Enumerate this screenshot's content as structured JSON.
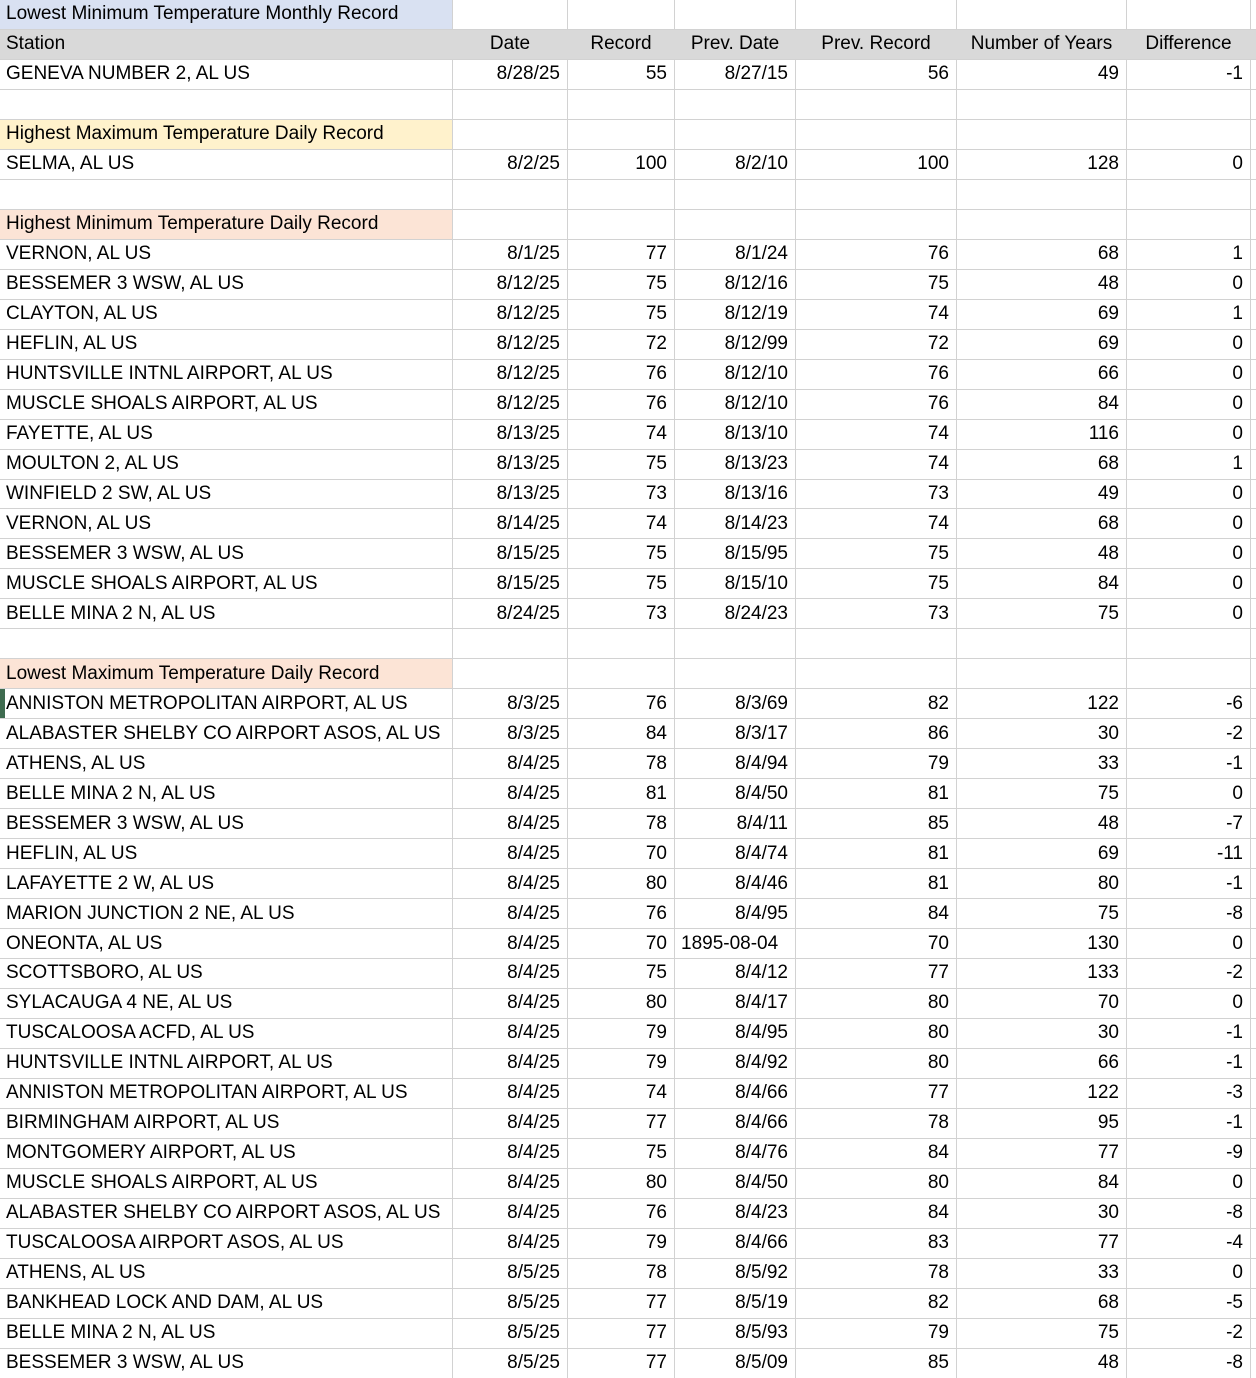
{
  "colors": {
    "gridline": "#d2d2d2",
    "column_header_fill": "#d9d9d9",
    "section_fill_monthly_lowest_min": "#d9e1f2",
    "section_fill_daily_highest_max": "#fff2cc",
    "section_fill_daily_highest_min": "#fce4d6",
    "section_fill_daily_lowest_max": "#fce4d6",
    "selection_marker_green": "#3e6b4f"
  },
  "columns": [
    "Station",
    "Date",
    "Record",
    "Prev. Date",
    "Prev. Record",
    "Number of Years",
    "Difference"
  ],
  "sections": [
    {
      "title": "Lowest Minimum Temperature Monthly Record",
      "fill": "#d9e1f2",
      "show_column_headers": true,
      "rows": [
        {
          "station": "GENEVA NUMBER 2, AL US",
          "date": "8/28/25",
          "record": "55",
          "prev_date": "8/27/15",
          "prev_record": "56",
          "years": "49",
          "difference": "-1"
        }
      ]
    },
    {
      "title": "Highest Maximum Temperature Daily Record",
      "fill": "#fff2cc",
      "show_column_headers": false,
      "rows": [
        {
          "station": "SELMA, AL US",
          "date": "8/2/25",
          "record": "100",
          "prev_date": "8/2/10",
          "prev_record": "100",
          "years": "128",
          "difference": "0"
        }
      ]
    },
    {
      "title": "Highest Minimum Temperature Daily Record",
      "fill": "#fce4d6",
      "show_column_headers": false,
      "rows": [
        {
          "station": "VERNON, AL US",
          "date": "8/1/25",
          "record": "77",
          "prev_date": "8/1/24",
          "prev_record": "76",
          "years": "68",
          "difference": "1"
        },
        {
          "station": "BESSEMER 3 WSW, AL US",
          "date": "8/12/25",
          "record": "75",
          "prev_date": "8/12/16",
          "prev_record": "75",
          "years": "48",
          "difference": "0"
        },
        {
          "station": "CLAYTON, AL US",
          "date": "8/12/25",
          "record": "75",
          "prev_date": "8/12/19",
          "prev_record": "74",
          "years": "69",
          "difference": "1"
        },
        {
          "station": "HEFLIN, AL US",
          "date": "8/12/25",
          "record": "72",
          "prev_date": "8/12/99",
          "prev_record": "72",
          "years": "69",
          "difference": "0"
        },
        {
          "station": "HUNTSVILLE INTNL AIRPORT, AL US",
          "date": "8/12/25",
          "record": "76",
          "prev_date": "8/12/10",
          "prev_record": "76",
          "years": "66",
          "difference": "0"
        },
        {
          "station": "MUSCLE SHOALS AIRPORT, AL US",
          "date": "8/12/25",
          "record": "76",
          "prev_date": "8/12/10",
          "prev_record": "76",
          "years": "84",
          "difference": "0"
        },
        {
          "station": "FAYETTE, AL US",
          "date": "8/13/25",
          "record": "74",
          "prev_date": "8/13/10",
          "prev_record": "74",
          "years": "116",
          "difference": "0"
        },
        {
          "station": "MOULTON 2, AL US",
          "date": "8/13/25",
          "record": "75",
          "prev_date": "8/13/23",
          "prev_record": "74",
          "years": "68",
          "difference": "1"
        },
        {
          "station": "WINFIELD 2 SW, AL US",
          "date": "8/13/25",
          "record": "73",
          "prev_date": "8/13/16",
          "prev_record": "73",
          "years": "49",
          "difference": "0"
        },
        {
          "station": "VERNON, AL US",
          "date": "8/14/25",
          "record": "74",
          "prev_date": "8/14/23",
          "prev_record": "74",
          "years": "68",
          "difference": "0"
        },
        {
          "station": "BESSEMER 3 WSW, AL US",
          "date": "8/15/25",
          "record": "75",
          "prev_date": "8/15/95",
          "prev_record": "75",
          "years": "48",
          "difference": "0"
        },
        {
          "station": "MUSCLE SHOALS AIRPORT, AL US",
          "date": "8/15/25",
          "record": "75",
          "prev_date": "8/15/10",
          "prev_record": "75",
          "years": "84",
          "difference": "0"
        },
        {
          "station": "BELLE MINA 2 N, AL US",
          "date": "8/24/25",
          "record": "73",
          "prev_date": "8/24/23",
          "prev_record": "73",
          "years": "75",
          "difference": "0"
        }
      ]
    },
    {
      "title": "Lowest Maximum Temperature Daily Record",
      "fill": "#fce4d6",
      "show_column_headers": false,
      "rows": [
        {
          "station": "ANNISTON METROPOLITAN AIRPORT, AL US",
          "date": "8/3/25",
          "record": "76",
          "prev_date": "8/3/69",
          "prev_record": "82",
          "years": "122",
          "difference": "-6",
          "selected": true
        },
        {
          "station": "ALABASTER SHELBY CO AIRPORT ASOS, AL US",
          "date": "8/3/25",
          "record": "84",
          "prev_date": "8/3/17",
          "prev_record": "86",
          "years": "30",
          "difference": "-2"
        },
        {
          "station": "ATHENS, AL US",
          "date": "8/4/25",
          "record": "78",
          "prev_date": "8/4/94",
          "prev_record": "79",
          "years": "33",
          "difference": "-1"
        },
        {
          "station": "BELLE MINA 2 N, AL US",
          "date": "8/4/25",
          "record": "81",
          "prev_date": "8/4/50",
          "prev_record": "81",
          "years": "75",
          "difference": "0"
        },
        {
          "station": "BESSEMER 3 WSW, AL US",
          "date": "8/4/25",
          "record": "78",
          "prev_date": "8/4/11",
          "prev_record": "85",
          "years": "48",
          "difference": "-7"
        },
        {
          "station": "HEFLIN, AL US",
          "date": "8/4/25",
          "record": "70",
          "prev_date": "8/4/74",
          "prev_record": "81",
          "years": "69",
          "difference": "-11"
        },
        {
          "station": "LAFAYETTE 2 W, AL US",
          "date": "8/4/25",
          "record": "80",
          "prev_date": "8/4/46",
          "prev_record": "81",
          "years": "80",
          "difference": "-1"
        },
        {
          "station": "MARION JUNCTION 2 NE, AL US",
          "date": "8/4/25",
          "record": "76",
          "prev_date": "8/4/95",
          "prev_record": "84",
          "years": "75",
          "difference": "-8"
        },
        {
          "station": "ONEONTA, AL US",
          "date": "8/4/25",
          "record": "70",
          "prev_date": "1895-08-04",
          "prev_record": "70",
          "years": "130",
          "difference": "0"
        },
        {
          "station": "SCOTTSBORO, AL US",
          "date": "8/4/25",
          "record": "75",
          "prev_date": "8/4/12",
          "prev_record": "77",
          "years": "133",
          "difference": "-2"
        },
        {
          "station": "SYLACAUGA 4 NE, AL US",
          "date": "8/4/25",
          "record": "80",
          "prev_date": "8/4/17",
          "prev_record": "80",
          "years": "70",
          "difference": "0"
        },
        {
          "station": "TUSCALOOSA ACFD, AL US",
          "date": "8/4/25",
          "record": "79",
          "prev_date": "8/4/95",
          "prev_record": "80",
          "years": "30",
          "difference": "-1"
        },
        {
          "station": "HUNTSVILLE INTNL AIRPORT, AL US",
          "date": "8/4/25",
          "record": "79",
          "prev_date": "8/4/92",
          "prev_record": "80",
          "years": "66",
          "difference": "-1"
        },
        {
          "station": "ANNISTON METROPOLITAN AIRPORT, AL US",
          "date": "8/4/25",
          "record": "74",
          "prev_date": "8/4/66",
          "prev_record": "77",
          "years": "122",
          "difference": "-3"
        },
        {
          "station": "BIRMINGHAM AIRPORT, AL US",
          "date": "8/4/25",
          "record": "77",
          "prev_date": "8/4/66",
          "prev_record": "78",
          "years": "95",
          "difference": "-1"
        },
        {
          "station": "MONTGOMERY AIRPORT, AL US",
          "date": "8/4/25",
          "record": "75",
          "prev_date": "8/4/76",
          "prev_record": "84",
          "years": "77",
          "difference": "-9"
        },
        {
          "station": "MUSCLE SHOALS AIRPORT, AL US",
          "date": "8/4/25",
          "record": "80",
          "prev_date": "8/4/50",
          "prev_record": "80",
          "years": "84",
          "difference": "0"
        },
        {
          "station": "ALABASTER SHELBY CO AIRPORT ASOS, AL US",
          "date": "8/4/25",
          "record": "76",
          "prev_date": "8/4/23",
          "prev_record": "84",
          "years": "30",
          "difference": "-8"
        },
        {
          "station": "TUSCALOOSA AIRPORT ASOS, AL US",
          "date": "8/4/25",
          "record": "79",
          "prev_date": "8/4/66",
          "prev_record": "83",
          "years": "77",
          "difference": "-4"
        },
        {
          "station": "ATHENS, AL US",
          "date": "8/5/25",
          "record": "78",
          "prev_date": "8/5/92",
          "prev_record": "78",
          "years": "33",
          "difference": "0"
        },
        {
          "station": "BANKHEAD LOCK AND DAM, AL US",
          "date": "8/5/25",
          "record": "77",
          "prev_date": "8/5/19",
          "prev_record": "82",
          "years": "68",
          "difference": "-5"
        },
        {
          "station": "BELLE MINA 2 N, AL US",
          "date": "8/5/25",
          "record": "77",
          "prev_date": "8/5/93",
          "prev_record": "79",
          "years": "75",
          "difference": "-2"
        },
        {
          "station": "BESSEMER 3 WSW, AL US",
          "date": "8/5/25",
          "record": "77",
          "prev_date": "8/5/09",
          "prev_record": "85",
          "years": "48",
          "difference": "-8"
        }
      ]
    }
  ]
}
